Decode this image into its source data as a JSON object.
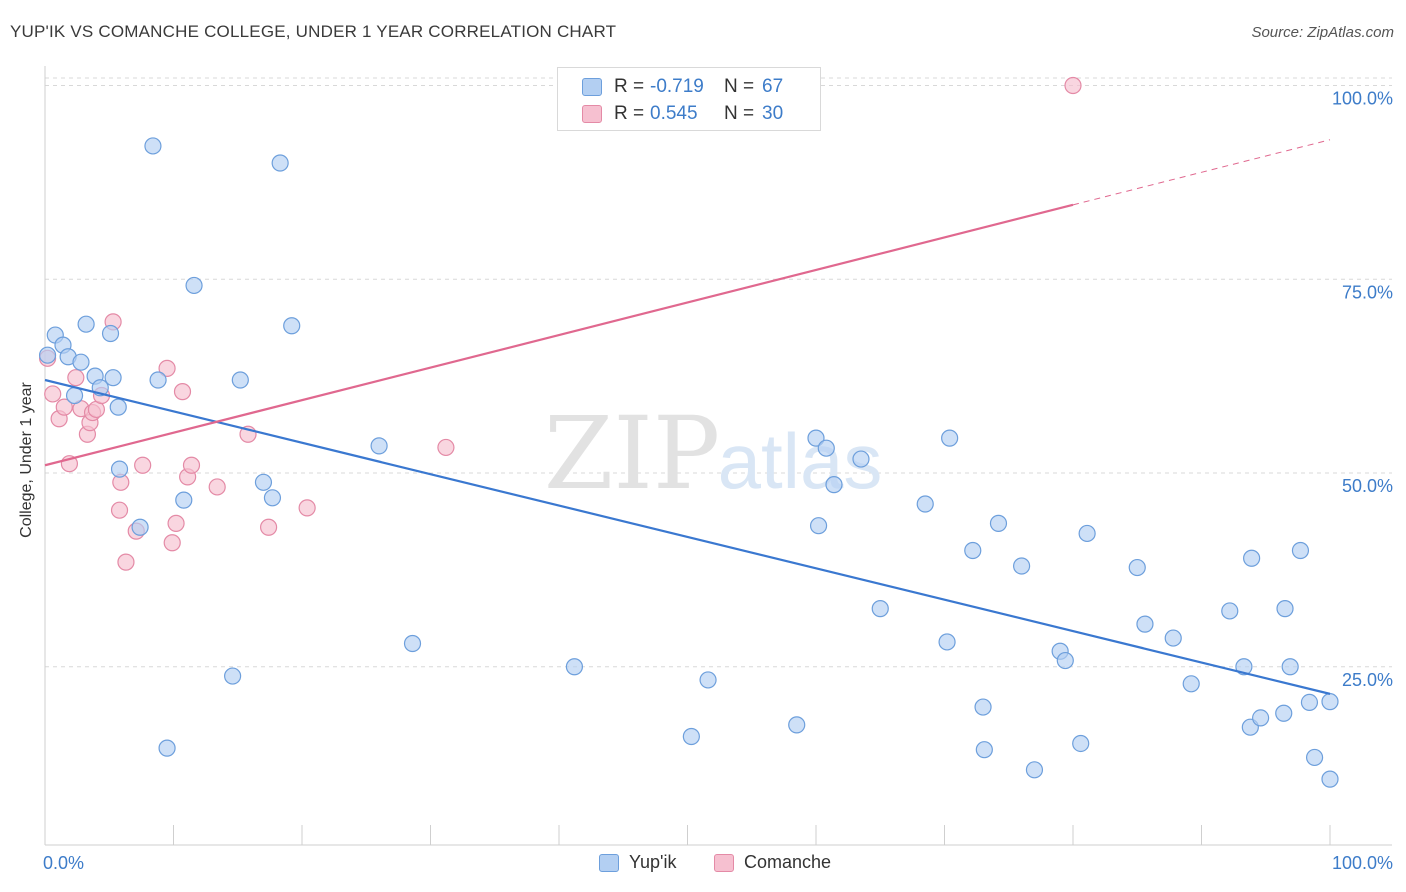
{
  "title": "YUP'IK VS COMANCHE COLLEGE, UNDER 1 YEAR CORRELATION CHART",
  "source": "Source: ZipAtlas.com",
  "watermark": {
    "zip": "ZIP",
    "atlas": "atlas"
  },
  "legend_top": {
    "r_label": "R =",
    "n_label": "N =",
    "series": [
      {
        "name": "Yup'ik",
        "r": "-0.719",
        "n": "67"
      },
      {
        "name": "Comanche",
        "r": "0.545",
        "n": "30"
      }
    ]
  },
  "colors": {
    "yupik_fill": "#b3cff2",
    "yupik_stroke": "#6d9fdc",
    "yupik_line": "#3a78d0",
    "comanche_fill": "#f6c0d0",
    "comanche_stroke": "#e48aa6",
    "comanche_line": "#e0688f",
    "grid": "#d8d8d8",
    "tick_label": "#3d7cc9"
  },
  "chart_data": {
    "type": "scatter",
    "title": "YUP'IK VS COMANCHE COLLEGE, UNDER 1 YEAR CORRELATION CHART",
    "xlabel": "",
    "ylabel": "College, Under 1 year",
    "xlim": [
      0,
      100
    ],
    "ylim": [
      2,
      102
    ],
    "x_tick_labels": [
      "0.0%",
      "100.0%"
    ],
    "y_ticks": [
      25,
      50,
      75,
      100
    ],
    "y_tick_labels": [
      "25.0%",
      "50.0%",
      "75.0%",
      "100.0%"
    ],
    "legend": [
      "Yup'ik",
      "Comanche"
    ],
    "series": [
      {
        "name": "Yup'ik",
        "r": -0.719,
        "n": 67,
        "trend": {
          "x": [
            0,
            100
          ],
          "y": [
            62.0,
            21.5
          ],
          "dashed_from": null
        },
        "points": [
          [
            0.2,
            65.2
          ],
          [
            0.8,
            67.8
          ],
          [
            1.4,
            66.5
          ],
          [
            1.8,
            65.0
          ],
          [
            2.3,
            60.0
          ],
          [
            2.8,
            64.3
          ],
          [
            3.2,
            69.2
          ],
          [
            3.9,
            62.5
          ],
          [
            4.3,
            61.0
          ],
          [
            5.1,
            68.0
          ],
          [
            5.3,
            62.3
          ],
          [
            5.7,
            58.5
          ],
          [
            5.8,
            50.5
          ],
          [
            7.4,
            43.0
          ],
          [
            8.4,
            92.2
          ],
          [
            8.8,
            62.0
          ],
          [
            9.5,
            14.5
          ],
          [
            10.8,
            46.5
          ],
          [
            11.6,
            74.2
          ],
          [
            14.6,
            23.8
          ],
          [
            15.2,
            62.0
          ],
          [
            17.0,
            48.8
          ],
          [
            17.7,
            46.8
          ],
          [
            18.3,
            90.0
          ],
          [
            19.2,
            69.0
          ],
          [
            26.0,
            53.5
          ],
          [
            28.6,
            28.0
          ],
          [
            41.2,
            25.0
          ],
          [
            50.3,
            16.0
          ],
          [
            51.6,
            23.3
          ],
          [
            58.5,
            17.5
          ],
          [
            60.0,
            54.5
          ],
          [
            60.2,
            43.2
          ],
          [
            60.8,
            53.2
          ],
          [
            61.4,
            48.5
          ],
          [
            63.5,
            51.8
          ],
          [
            65.0,
            32.5
          ],
          [
            68.5,
            46.0
          ],
          [
            70.2,
            28.2
          ],
          [
            70.4,
            54.5
          ],
          [
            72.2,
            40.0
          ],
          [
            73.0,
            19.8
          ],
          [
            73.1,
            14.3
          ],
          [
            74.2,
            43.5
          ],
          [
            76.0,
            38.0
          ],
          [
            77.0,
            11.7
          ],
          [
            79.0,
            27.0
          ],
          [
            79.4,
            25.8
          ],
          [
            80.6,
            15.1
          ],
          [
            81.1,
            42.2
          ],
          [
            85.0,
            37.8
          ],
          [
            85.6,
            30.5
          ],
          [
            87.8,
            28.7
          ],
          [
            89.2,
            22.8
          ],
          [
            92.2,
            32.2
          ],
          [
            93.3,
            25.0
          ],
          [
            93.8,
            17.2
          ],
          [
            93.9,
            39.0
          ],
          [
            94.6,
            18.4
          ],
          [
            96.4,
            19.0
          ],
          [
            96.5,
            32.5
          ],
          [
            96.9,
            25.0
          ],
          [
            97.7,
            40.0
          ],
          [
            98.4,
            20.4
          ],
          [
            98.8,
            13.3
          ],
          [
            100.0,
            10.5
          ],
          [
            100.0,
            20.5
          ]
        ]
      },
      {
        "name": "Comanche",
        "r": 0.545,
        "n": 30,
        "trend": {
          "x": [
            0,
            100
          ],
          "y": [
            51.0,
            93.0
          ],
          "dashed_from": 80
        },
        "points": [
          [
            0.2,
            64.8
          ],
          [
            0.6,
            60.2
          ],
          [
            1.1,
            57.0
          ],
          [
            1.5,
            58.5
          ],
          [
            1.9,
            51.2
          ],
          [
            2.4,
            62.3
          ],
          [
            2.8,
            58.3
          ],
          [
            3.3,
            55.0
          ],
          [
            3.5,
            56.5
          ],
          [
            3.7,
            57.8
          ],
          [
            4.0,
            58.2
          ],
          [
            4.4,
            60.0
          ],
          [
            5.3,
            69.5
          ],
          [
            5.8,
            45.2
          ],
          [
            5.9,
            48.8
          ],
          [
            6.3,
            38.5
          ],
          [
            7.1,
            42.5
          ],
          [
            7.6,
            51.0
          ],
          [
            9.5,
            63.5
          ],
          [
            9.9,
            41.0
          ],
          [
            10.2,
            43.5
          ],
          [
            10.7,
            60.5
          ],
          [
            11.1,
            49.5
          ],
          [
            11.4,
            51.0
          ],
          [
            13.4,
            48.2
          ],
          [
            15.8,
            55.0
          ],
          [
            17.4,
            43.0
          ],
          [
            20.4,
            45.5
          ],
          [
            31.2,
            53.3
          ],
          [
            80.0,
            100.0
          ]
        ]
      }
    ]
  }
}
